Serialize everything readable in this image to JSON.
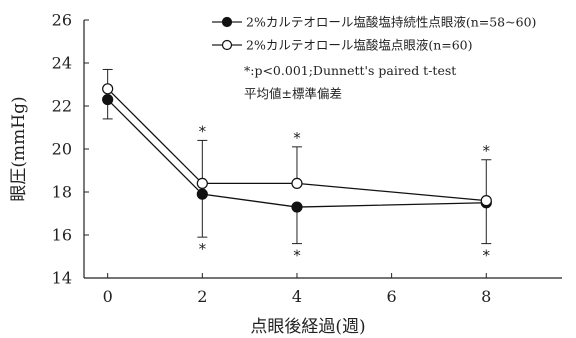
{
  "chart_data": {
    "type": "line",
    "title": "",
    "xlabel": "点眼後経過(週)",
    "ylabel": "眼圧(mmHg)",
    "xlim": [
      -0.5,
      9.6
    ],
    "ylim": [
      14,
      26
    ],
    "xticks": [
      0,
      2,
      4,
      6,
      8
    ],
    "yticks": [
      14,
      16,
      18,
      20,
      22,
      24,
      26
    ],
    "grid": false,
    "legend_position": "top-right",
    "series": [
      {
        "name": "2%カルテオロール塩酸塩持続性点眼液(n=58~60)",
        "marker": "filled-circle",
        "color": "#111111",
        "x": [
          0,
          2,
          4,
          8
        ],
        "y": [
          22.3,
          17.9,
          17.3,
          17.5
        ],
        "err_lower": [
          0.9,
          2.0,
          1.7,
          1.9
        ]
      },
      {
        "name": "2%カルテオロール塩酸塩点眼液(n=60)",
        "marker": "open-circle",
        "color": "#111111",
        "x": [
          0,
          2,
          4,
          8
        ],
        "y": [
          22.8,
          18.4,
          18.4,
          17.6
        ],
        "err_upper": [
          0.9,
          2.0,
          1.7,
          1.9
        ]
      }
    ],
    "significance_x": [
      2,
      4,
      8
    ],
    "significance_marker": "*",
    "notes": [
      "*:p<0.001;Dunnett's paired t-test",
      "平均値±標準偏差"
    ]
  }
}
